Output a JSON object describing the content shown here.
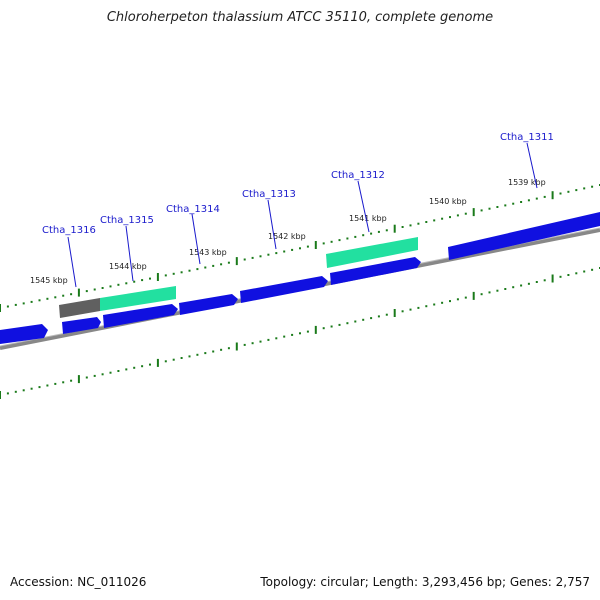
{
  "title": "Chloroherpeton thalassium ATCC 35110, complete genome",
  "footer": {
    "accession": "Accession: NC_011026",
    "stats": "Topology: circular; Length: 3,293,456 bp; Genes: 2,757"
  },
  "ticks": [
    {
      "label": "1545 kbp"
    },
    {
      "label": "1544 kbp"
    },
    {
      "label": "1543 kbp"
    },
    {
      "label": "1542 kbp"
    },
    {
      "label": "1541 kbp"
    },
    {
      "label": "1540 kbp"
    },
    {
      "label": "1539 kbp"
    }
  ],
  "genes": [
    {
      "label": "Ctha_1316"
    },
    {
      "label": "Ctha_1315"
    },
    {
      "label": "Ctha_1314"
    },
    {
      "label": "Ctha_1313"
    },
    {
      "label": "Ctha_1312"
    },
    {
      "label": "Ctha_1311"
    }
  ],
  "colors": {
    "cds": "#1010e0",
    "rna_feature": "#22e0a0",
    "gray_feature": "#606060",
    "tick": "#1a7a1a",
    "backbone": "#888888",
    "label": "#1a1acc"
  }
}
